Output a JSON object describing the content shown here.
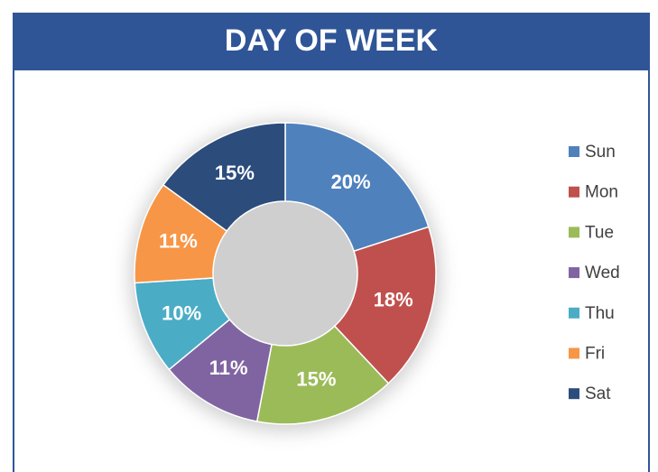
{
  "chart_data": {
    "type": "donut",
    "title": "DAY OF WEEK",
    "categories": [
      "Sun",
      "Mon",
      "Tue",
      "Wed",
      "Thu",
      "Fri",
      "Sat"
    ],
    "values": [
      20,
      18,
      15,
      11,
      10,
      11,
      15
    ],
    "value_labels": [
      "20%",
      "18%",
      "15%",
      "11%",
      "10%",
      "11%",
      "15%"
    ],
    "colors": [
      "#4f81bd",
      "#c0504d",
      "#9bbb59",
      "#8064a2",
      "#4bacc6",
      "#f79646",
      "#2c4d7c"
    ],
    "legend": "right"
  }
}
